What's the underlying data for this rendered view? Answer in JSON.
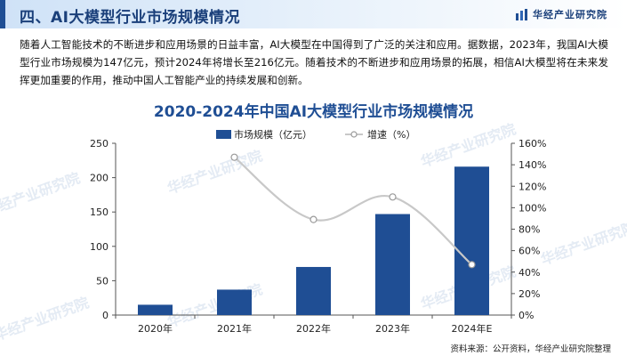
{
  "header": {
    "section_title": "四、AI大模型行业市场规模情况",
    "brand_name": "华经产业研究院",
    "brand_icon": "bar-logo-icon"
  },
  "description": "随着人工智能技术的不断进步和应用场景的日益丰富，AI大模型在中国得到了广泛的关注和应用。据数据，2023年，我国AI大模型行业市场规模为147亿元，预计2024年将增长至216亿元。随着技术的不断进步和应用场景的拓展，相信AI大模型将在未来发挥更加重要的作用，推动中国人工智能产业的持续发展和创新。",
  "watermark_text": "华经产业研究院",
  "chart_data": {
    "type": "bar",
    "title": "2020-2024年中国AI大模型行业市场规模情况",
    "categories": [
      "2020年",
      "2021年",
      "2022年",
      "2023年",
      "2024年E"
    ],
    "series": [
      {
        "name": "市场规模（亿元）",
        "type": "bar",
        "axis": "left",
        "values": [
          15,
          37,
          70,
          147,
          216
        ]
      },
      {
        "name": "增速（%）",
        "type": "line",
        "axis": "right",
        "values": [
          null,
          147,
          89,
          110,
          47
        ]
      }
    ],
    "y_left": {
      "min": 0,
      "max": 250,
      "ticks": [
        0,
        50,
        100,
        150,
        200,
        250
      ]
    },
    "y_right": {
      "min": 0,
      "max": 160,
      "ticks": [
        "0%",
        "20%",
        "40%",
        "60%",
        "80%",
        "100%",
        "120%",
        "140%",
        "160%"
      ]
    },
    "legend_position": "top-center",
    "grid": false,
    "colors": {
      "bar": "#1f4e94",
      "line": "#c8c8c8",
      "marker_fill": "#ffffff"
    }
  },
  "source": "资料来源：公开资料，华经产业研究院整理"
}
